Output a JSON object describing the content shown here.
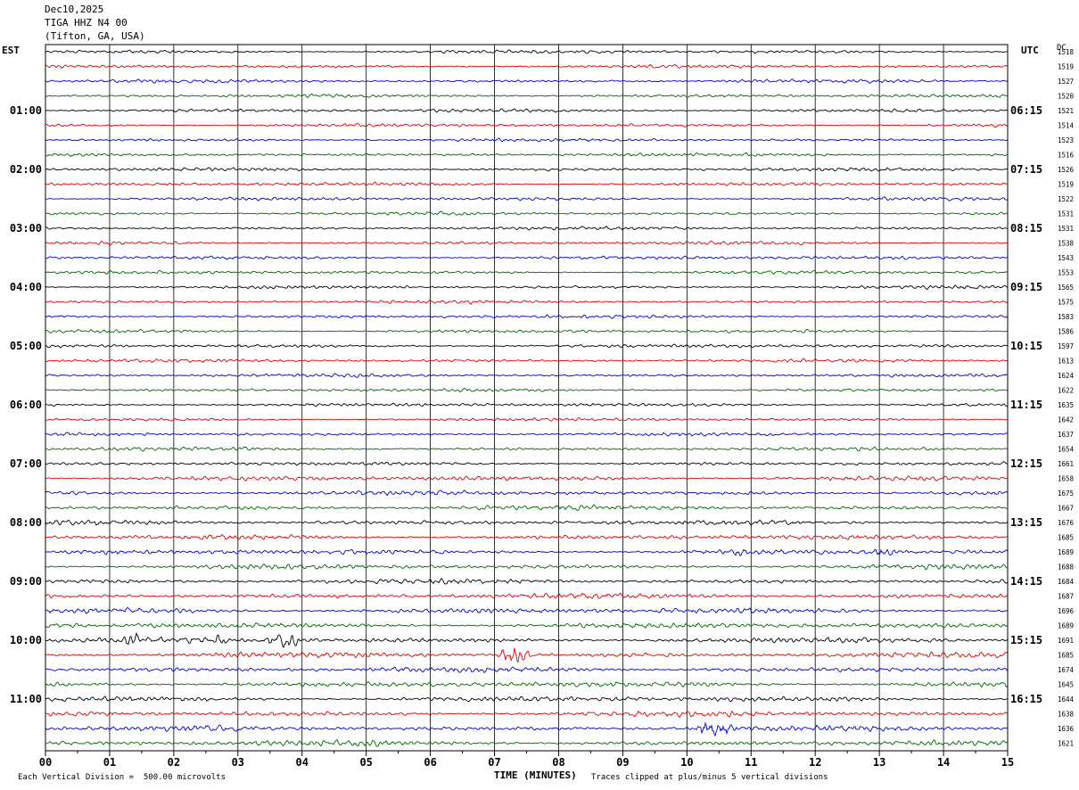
{
  "header": {
    "date": "Dec10,2025",
    "station": "TIGA HHZ N4 00",
    "location": "(Tifton, GA, USA)"
  },
  "left_zone_label": "EST",
  "right_zone_label": "UTC",
  "dc_label": "DC",
  "footer": {
    "scale_note": "Each Vertical Division =  500.00 microvolts",
    "clip_note": "Traces clipped at plus/minus 5 vertical divisions"
  },
  "chart_data": {
    "type": "line",
    "title": "",
    "xlabel": "TIME (MINUTES)",
    "ylabel": "",
    "xlim": [
      0,
      15
    ],
    "x_ticks": [
      "00",
      "01",
      "02",
      "03",
      "04",
      "05",
      "06",
      "07",
      "08",
      "09",
      "10",
      "11",
      "12",
      "13",
      "14",
      "15"
    ],
    "grid": "vertical lines each minute",
    "trace_colors": [
      "#000000",
      "#dd0000",
      "#0000cc",
      "#006600"
    ],
    "left_hour_labels": [
      {
        "row": 4,
        "text": "01:00"
      },
      {
        "row": 8,
        "text": "02:00"
      },
      {
        "row": 12,
        "text": "03:00"
      },
      {
        "row": 16,
        "text": "04:00"
      },
      {
        "row": 20,
        "text": "05:00"
      },
      {
        "row": 24,
        "text": "06:00"
      },
      {
        "row": 28,
        "text": "07:00"
      },
      {
        "row": 32,
        "text": "08:00"
      },
      {
        "row": 36,
        "text": "09:00"
      },
      {
        "row": 40,
        "text": "10:00"
      },
      {
        "row": 44,
        "text": "11:00"
      }
    ],
    "right_hour_labels": [
      {
        "row": 4,
        "text": "06:15"
      },
      {
        "row": 8,
        "text": "07:15"
      },
      {
        "row": 12,
        "text": "08:15"
      },
      {
        "row": 16,
        "text": "09:15"
      },
      {
        "row": 20,
        "text": "10:15"
      },
      {
        "row": 24,
        "text": "11:15"
      },
      {
        "row": 28,
        "text": "12:15"
      },
      {
        "row": 32,
        "text": "13:15"
      },
      {
        "row": 36,
        "text": "14:15"
      },
      {
        "row": 40,
        "text": "15:15"
      },
      {
        "row": 44,
        "text": "16:15"
      }
    ],
    "dc_values": [
      "1518",
      "1519",
      "1527",
      "1520",
      "1521",
      "1514",
      "1523",
      "1516",
      "1526",
      "1519",
      "1522",
      "1531",
      "1531",
      "1538",
      "1543",
      "1553",
      "1565",
      "1575",
      "1583",
      "1586",
      "1597",
      "1613",
      "1624",
      "1622",
      "1635",
      "1642",
      "1637",
      "1654",
      "1661",
      "1658",
      "1675",
      "1667",
      "1676",
      "1685",
      "1689",
      "1688",
      "1684",
      "1687",
      "1696",
      "1689",
      "1691",
      "1685",
      "1674",
      "1645",
      "1644",
      "1638",
      "1636",
      "1621"
    ],
    "events": [
      {
        "row": 40,
        "start_min": 1.2,
        "end_min": 1.5,
        "amp": 2.0
      },
      {
        "row": 40,
        "start_min": 2.6,
        "end_min": 2.9,
        "amp": 1.6
      },
      {
        "row": 40,
        "start_min": 3.4,
        "end_min": 4.0,
        "amp": 2.8
      },
      {
        "row": 41,
        "start_min": 7.0,
        "end_min": 7.6,
        "amp": 3.5
      },
      {
        "row": 46,
        "start_min": 10.1,
        "end_min": 10.8,
        "amp": 3.2
      },
      {
        "row": 34,
        "start_min": 10.7,
        "end_min": 11.0,
        "amp": 1.4
      },
      {
        "row": 34,
        "start_min": 12.9,
        "end_min": 13.3,
        "amp": 1.4
      }
    ]
  }
}
